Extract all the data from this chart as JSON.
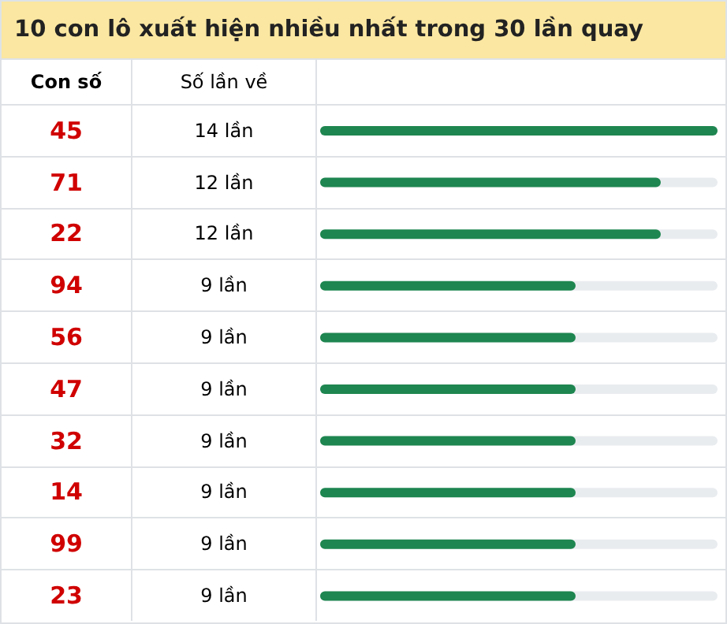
{
  "chart_data": {
    "type": "bar",
    "orientation": "horizontal",
    "title": "10 con lô xuất hiện nhiều nhất trong 30 lần quay",
    "annotations": [
      "Con số",
      "Số lần về"
    ],
    "categories": [
      "45",
      "71",
      "22",
      "94",
      "56",
      "47",
      "32",
      "14",
      "99",
      "23"
    ],
    "values": [
      14,
      12,
      12,
      9,
      9,
      9,
      9,
      9,
      9,
      9
    ],
    "value_labels": [
      "14 lần",
      "12 lần",
      "12 lần",
      "9 lần",
      "9 lần",
      "9 lần",
      "9 lần",
      "9 lần",
      "9 lần",
      "9 lần"
    ],
    "color": "#1e8650",
    "xlim": [
      0,
      14
    ]
  }
}
